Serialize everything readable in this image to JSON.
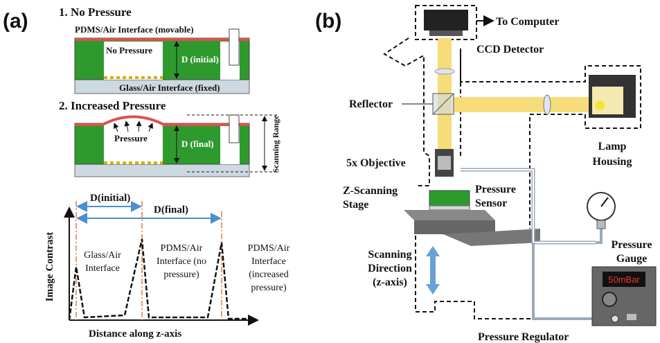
{
  "panel_a": {
    "label": "(a)",
    "step1": {
      "title": "1. No Pressure",
      "top_interface": "PDMS/Air Interface (movable)",
      "cavity": "No Pressure",
      "distance": "D (initial)",
      "bottom_interface": "Glass/Air Interface (fixed)"
    },
    "step2": {
      "title": "2. Increased Pressure",
      "cavity": "Pressure",
      "distance": "D (final)",
      "range": "Scanning Range"
    },
    "plot": {
      "d_initial": "D(initial)",
      "d_final": "D(final)",
      "y_label": "Image Contrast",
      "x_label": "Distance along z-axis",
      "peaks": [
        [
          "Glass/Air",
          "Interface"
        ],
        [
          "PDMS/Air",
          "Interface (no",
          "pressure)"
        ],
        [
          "PDMS/Air",
          "Interface",
          "(increased",
          "pressure)"
        ]
      ]
    }
  },
  "panel_b": {
    "label": "(b)",
    "computer": "To Computer",
    "detector": "CCD Detector",
    "reflector": "Reflector",
    "lamp": [
      "Lamp",
      "Housing"
    ],
    "objective": "5x Objective",
    "stage": [
      "Z-Scanning",
      "Stage"
    ],
    "sensor": [
      "Pressure",
      "Sensor"
    ],
    "gauge": [
      "Pressure",
      "Gauge"
    ],
    "direction": [
      "Scanning",
      "Direction",
      "(z-axis)"
    ],
    "display": "50mBar",
    "regulator": "Pressure Regulator"
  }
}
